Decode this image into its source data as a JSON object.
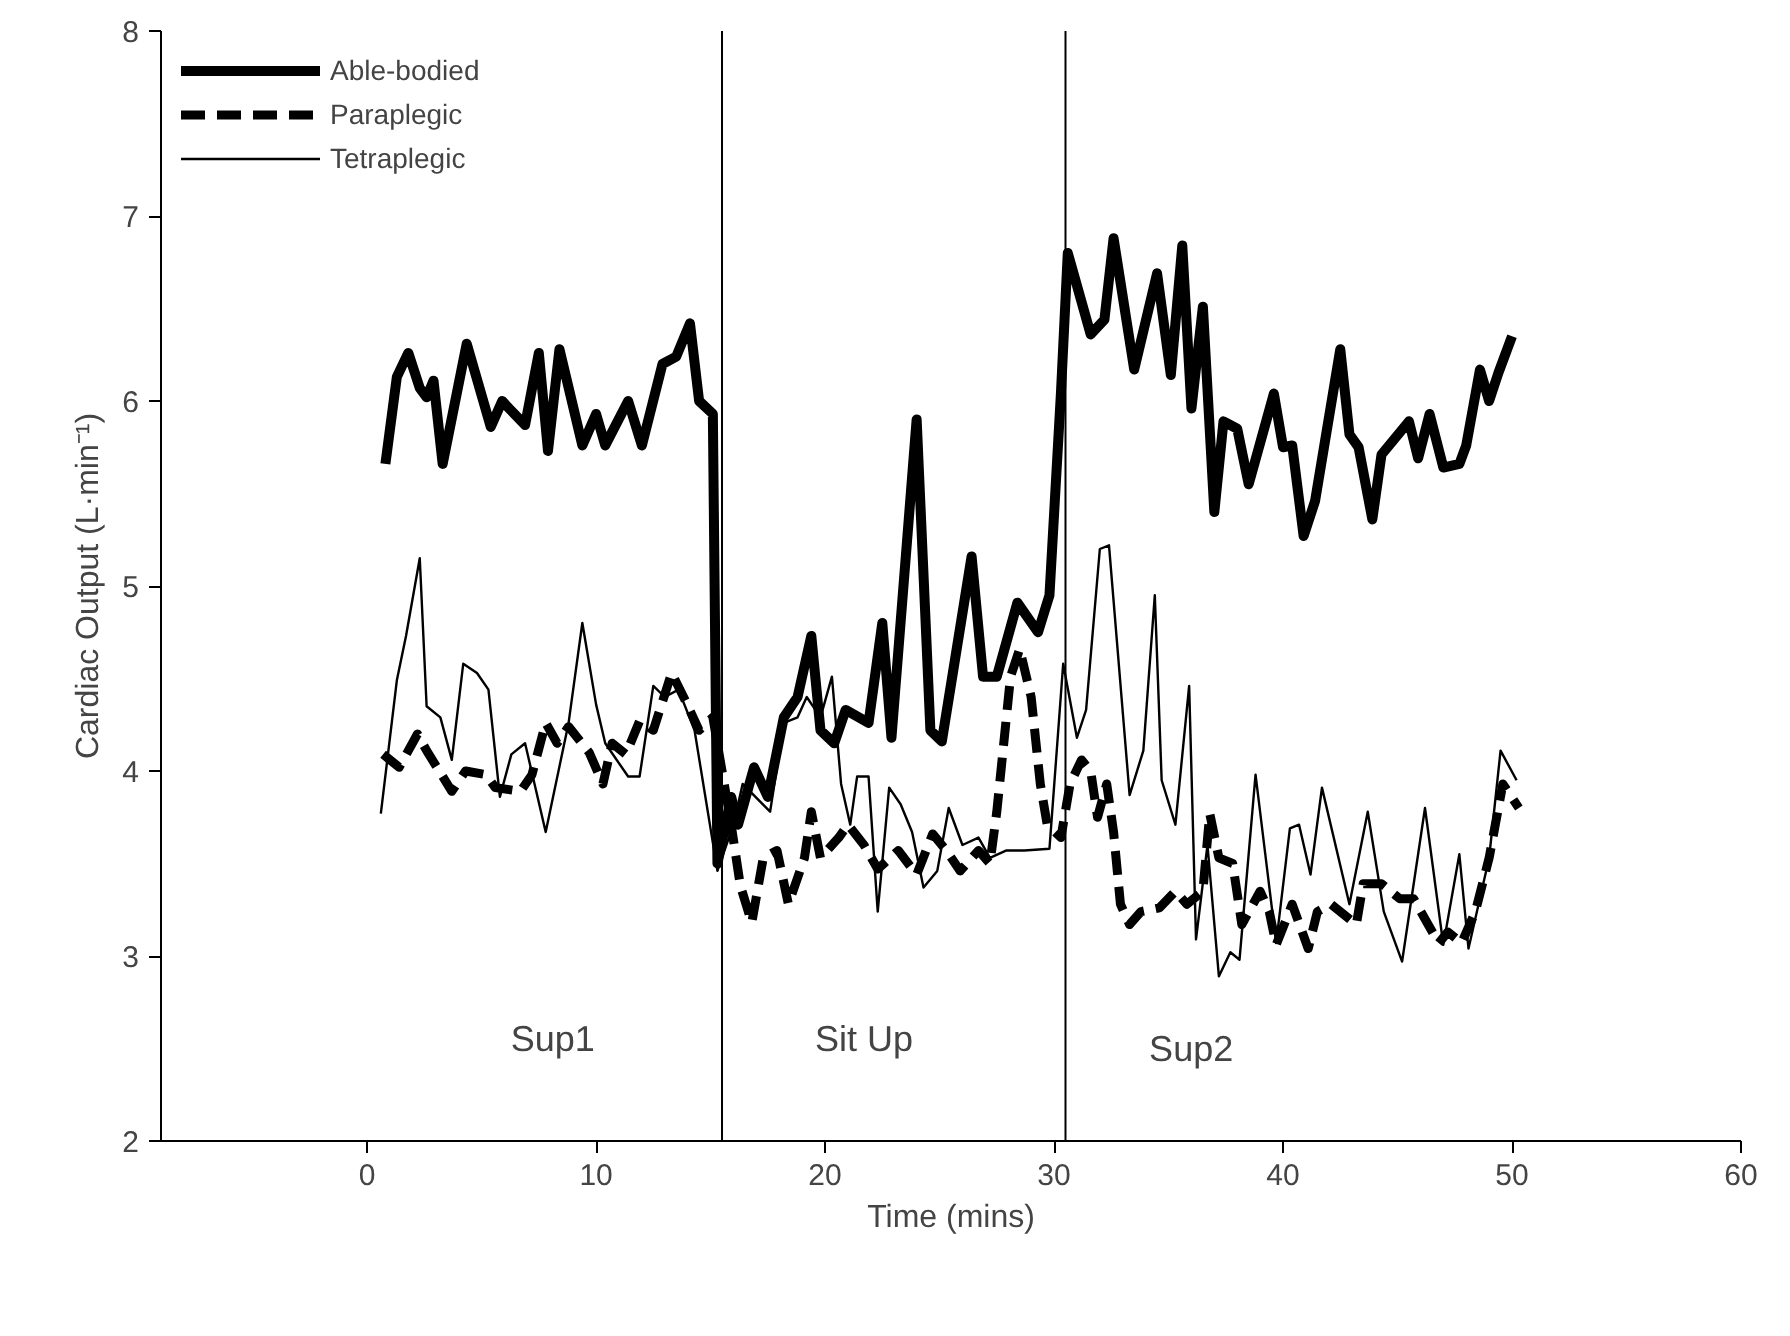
{
  "chart_data": {
    "type": "line",
    "xlabel": "Time (mins)",
    "ylabel": "Cardiac Output (L·min⁻¹)",
    "xlim": [
      -9,
      60
    ],
    "xticks": [
      0,
      10,
      20,
      30,
      40,
      50,
      60
    ],
    "ylim": [
      2,
      8
    ],
    "yticks": [
      2,
      3,
      4,
      5,
      6,
      7,
      8
    ],
    "grid": false,
    "legend": "top left",
    "marker": "none",
    "series": [
      {
        "name": "Able-bodied",
        "color": "#000000",
        "line_style": "solid",
        "x": [
          0.8,
          1.3,
          1.8,
          2.3,
          2.6,
          2.9,
          3.3,
          4.35,
          5.4,
          5.9,
          6.2,
          6.9,
          7.5,
          7.9,
          8.4,
          9.4,
          10.0,
          10.4,
          11.4,
          12.0,
          12.9,
          13.5,
          14.1,
          14.5,
          15.1,
          15.3,
          15.9,
          16.2,
          16.9,
          17.5,
          18.2,
          18.8,
          19.4,
          19.8,
          20.4,
          20.9,
          21.9,
          22.5,
          22.9,
          24.0,
          24.6,
          25.1,
          26.4,
          26.9,
          27.5,
          28.4,
          29.3,
          29.8,
          30.3,
          30.6,
          31.6,
          32.2,
          32.6,
          33.5,
          34.5,
          35.1,
          35.6,
          36.0,
          36.5,
          37.0,
          37.4,
          38.0,
          38.5,
          39.6,
          40.0,
          40.4,
          40.9,
          41.4,
          42.5,
          42.9,
          43.3,
          43.9,
          44.3,
          45.5,
          45.9,
          46.4,
          47.0,
          47.7,
          48.0,
          48.6,
          49.0,
          49.4,
          50.0
        ],
        "values": [
          5.66,
          6.13,
          6.26,
          6.07,
          6.02,
          6.11,
          5.66,
          6.31,
          5.86,
          6.0,
          5.96,
          5.87,
          6.26,
          5.73,
          6.28,
          5.76,
          5.93,
          5.76,
          6.0,
          5.76,
          6.2,
          6.24,
          6.42,
          6.0,
          5.93,
          3.5,
          3.86,
          3.71,
          4.02,
          3.86,
          4.29,
          4.4,
          4.73,
          4.22,
          4.15,
          4.33,
          4.26,
          4.8,
          4.18,
          5.9,
          4.22,
          4.16,
          5.16,
          4.51,
          4.51,
          4.91,
          4.75,
          4.95,
          6.04,
          6.8,
          6.36,
          6.44,
          6.88,
          6.17,
          6.69,
          6.14,
          6.84,
          5.96,
          6.51,
          5.4,
          5.89,
          5.85,
          5.55,
          6.04,
          5.75,
          5.76,
          5.27,
          5.46,
          6.28,
          5.82,
          5.75,
          5.36,
          5.71,
          5.89,
          5.69,
          5.93,
          5.64,
          5.66,
          5.76,
          6.17,
          6.0,
          6.15,
          6.35
        ]
      },
      {
        "name": "Paraplegic",
        "color": "#000000",
        "line_style": "dashed",
        "x": [
          0.7,
          1.4,
          2.2,
          2.6,
          3.7,
          4.3,
          5.2,
          5.6,
          6.7,
          7.2,
          7.8,
          8.3,
          8.8,
          9.7,
          10.3,
          10.7,
          11.3,
          11.9,
          12.5,
          13.3,
          13.9,
          14.5,
          15.1,
          15.9,
          16.3,
          16.8,
          17.3,
          17.9,
          18.4,
          19.1,
          19.4,
          19.8,
          20.6,
          21.0,
          21.7,
          22.3,
          23.2,
          24.0,
          24.7,
          25.3,
          25.9,
          26.7,
          27.2,
          27.5,
          28.1,
          28.5,
          29.0,
          29.4,
          29.7,
          30.3,
          30.7,
          31.2,
          31.6,
          31.9,
          32.3,
          32.6,
          32.9,
          33.3,
          33.8,
          34.6,
          35.3,
          35.8,
          36.5,
          36.8,
          37.2,
          37.8,
          38.2,
          39.0,
          39.4,
          39.7,
          40.4,
          41.1,
          41.5,
          42.1,
          43.2,
          43.5,
          44.3,
          45.1,
          45.7,
          46.2,
          46.8,
          47.2,
          47.8,
          48.4,
          49.0,
          49.6,
          50.3
        ],
        "values": [
          4.09,
          4.02,
          4.2,
          4.11,
          3.89,
          4.0,
          3.98,
          3.91,
          3.89,
          3.98,
          4.26,
          4.15,
          4.24,
          4.1,
          3.93,
          4.15,
          4.09,
          4.27,
          4.22,
          4.53,
          4.38,
          4.22,
          4.29,
          3.71,
          3.38,
          3.18,
          3.53,
          3.57,
          3.28,
          3.53,
          3.78,
          3.53,
          3.64,
          3.71,
          3.6,
          3.47,
          3.57,
          3.44,
          3.66,
          3.57,
          3.46,
          3.57,
          3.5,
          3.78,
          4.51,
          4.66,
          4.4,
          3.93,
          3.71,
          3.64,
          3.93,
          4.06,
          4.0,
          3.75,
          3.93,
          3.67,
          3.28,
          3.17,
          3.24,
          3.26,
          3.35,
          3.28,
          3.35,
          3.77,
          3.53,
          3.5,
          3.17,
          3.35,
          3.24,
          3.06,
          3.28,
          3.04,
          3.24,
          3.28,
          3.17,
          3.39,
          3.39,
          3.31,
          3.31,
          3.2,
          3.07,
          3.13,
          3.07,
          3.24,
          3.53,
          3.93,
          3.8
        ]
      },
      {
        "name": "Tetraplegic",
        "color": "#000000",
        "line_style": "solid",
        "x": [
          0.6,
          1.3,
          1.7,
          2.3,
          2.6,
          3.2,
          3.7,
          4.2,
          4.8,
          5.3,
          5.8,
          6.3,
          6.9,
          7.8,
          8.8,
          9.4,
          10.0,
          10.4,
          11.4,
          11.9,
          12.5,
          13.0,
          13.6,
          14.3,
          15.3,
          16.0,
          16.4,
          17.6,
          18.2,
          18.8,
          19.2,
          19.8,
          20.3,
          20.7,
          21.1,
          21.4,
          21.9,
          22.3,
          22.8,
          23.3,
          23.8,
          24.3,
          24.9,
          25.4,
          26.0,
          26.7,
          27.2,
          27.9,
          28.7,
          29.8,
          30.4,
          31.0,
          31.4,
          32.0,
          32.4,
          33.3,
          33.9,
          34.4,
          34.7,
          35.3,
          35.9,
          36.2,
          36.7,
          37.2,
          37.7,
          38.1,
          38.8,
          39.7,
          40.3,
          40.7,
          41.2,
          41.7,
          42.9,
          43.7,
          44.4,
          45.2,
          46.2,
          47.0,
          47.7,
          48.1,
          49.0,
          49.5,
          50.2
        ],
        "values": [
          3.77,
          4.49,
          4.73,
          5.15,
          4.35,
          4.29,
          4.06,
          4.58,
          4.53,
          4.44,
          3.86,
          4.09,
          4.15,
          3.67,
          4.26,
          4.8,
          4.36,
          4.15,
          3.97,
          3.97,
          4.46,
          4.4,
          4.44,
          4.22,
          3.46,
          3.71,
          3.93,
          3.78,
          4.26,
          4.29,
          4.4,
          4.29,
          4.51,
          3.93,
          3.71,
          3.97,
          3.97,
          3.24,
          3.91,
          3.82,
          3.67,
          3.37,
          3.46,
          3.8,
          3.6,
          3.64,
          3.53,
          3.57,
          3.57,
          3.58,
          4.58,
          4.18,
          4.33,
          5.2,
          5.22,
          3.87,
          4.11,
          4.95,
          3.95,
          3.71,
          4.46,
          3.09,
          3.6,
          2.89,
          3.02,
          2.98,
          3.98,
          3.07,
          3.69,
          3.71,
          3.44,
          3.91,
          3.28,
          3.78,
          3.24,
          2.97,
          3.8,
          3.06,
          3.55,
          3.04,
          3.53,
          4.11,
          3.95
        ]
      }
    ],
    "ref_lines": [
      {
        "axis": "x",
        "value": 15.5
      },
      {
        "axis": "x",
        "value": 30.5
      }
    ],
    "annotations": [
      "Sup1",
      "Sit Up",
      "Sup2"
    ]
  }
}
